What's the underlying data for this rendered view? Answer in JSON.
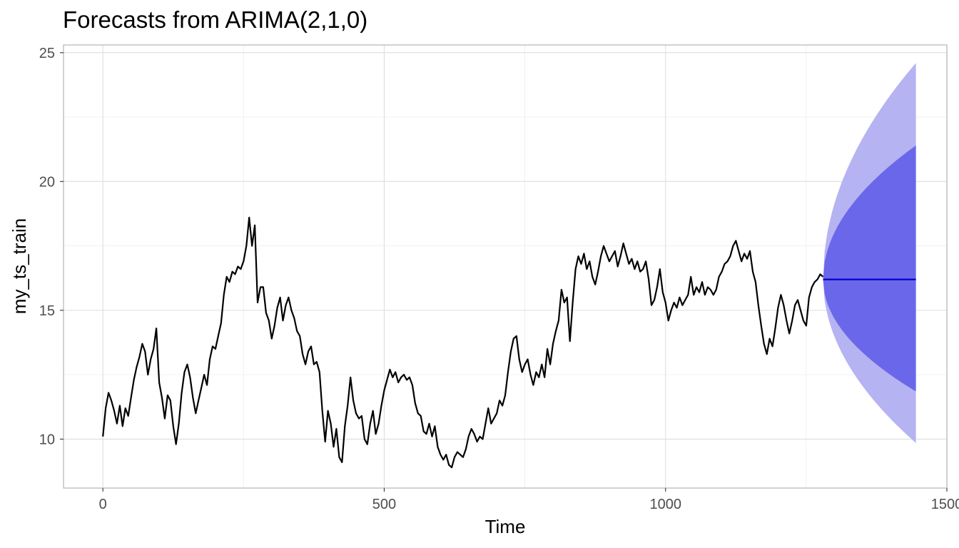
{
  "chart_data": {
    "type": "line",
    "title": "Forecasts from ARIMA(2,1,0)",
    "xlabel": "Time",
    "ylabel": "my_ts_train",
    "xlim": [
      -70,
      1500
    ],
    "ylim": [
      8.1,
      25.3
    ],
    "xticks": [
      0,
      500,
      1000,
      1500
    ],
    "xtick_labels": [
      "0",
      "500",
      "1000",
      "1500"
    ],
    "yticks": [
      10,
      15,
      20,
      25
    ],
    "ytick_labels": [
      "10",
      "15",
      "20",
      "25"
    ],
    "grid": true,
    "legend": "none",
    "series": [
      {
        "role": "observed",
        "color": "#000000",
        "points": [
          [
            0,
            10.1
          ],
          [
            5,
            11.2
          ],
          [
            10,
            11.8
          ],
          [
            15,
            11.5
          ],
          [
            20,
            11.1
          ],
          [
            25,
            10.6
          ],
          [
            30,
            11.3
          ],
          [
            35,
            10.5
          ],
          [
            40,
            11.2
          ],
          [
            45,
            10.9
          ],
          [
            50,
            11.6
          ],
          [
            55,
            12.3
          ],
          [
            60,
            12.8
          ],
          [
            65,
            13.2
          ],
          [
            70,
            13.7
          ],
          [
            75,
            13.4
          ],
          [
            80,
            12.5
          ],
          [
            85,
            13.1
          ],
          [
            90,
            13.5
          ],
          [
            95,
            14.3
          ],
          [
            100,
            12.2
          ],
          [
            105,
            11.6
          ],
          [
            110,
            10.8
          ],
          [
            115,
            11.7
          ],
          [
            120,
            11.5
          ],
          [
            125,
            10.5
          ],
          [
            130,
            9.8
          ],
          [
            135,
            10.6
          ],
          [
            140,
            11.8
          ],
          [
            145,
            12.6
          ],
          [
            150,
            12.9
          ],
          [
            155,
            12.4
          ],
          [
            160,
            11.6
          ],
          [
            165,
            11.0
          ],
          [
            170,
            11.5
          ],
          [
            175,
            12.0
          ],
          [
            180,
            12.5
          ],
          [
            185,
            12.1
          ],
          [
            190,
            13.1
          ],
          [
            195,
            13.6
          ],
          [
            200,
            13.5
          ],
          [
            205,
            14.0
          ],
          [
            210,
            14.5
          ],
          [
            215,
            15.6
          ],
          [
            220,
            16.3
          ],
          [
            225,
            16.1
          ],
          [
            230,
            16.5
          ],
          [
            235,
            16.4
          ],
          [
            240,
            16.7
          ],
          [
            245,
            16.6
          ],
          [
            250,
            16.9
          ],
          [
            255,
            17.5
          ],
          [
            260,
            18.6
          ],
          [
            265,
            17.5
          ],
          [
            270,
            18.3
          ],
          [
            275,
            15.3
          ],
          [
            280,
            15.9
          ],
          [
            285,
            15.9
          ],
          [
            290,
            14.9
          ],
          [
            295,
            14.6
          ],
          [
            300,
            13.9
          ],
          [
            305,
            14.4
          ],
          [
            310,
            15.1
          ],
          [
            315,
            15.5
          ],
          [
            320,
            14.6
          ],
          [
            325,
            15.2
          ],
          [
            330,
            15.5
          ],
          [
            335,
            15.0
          ],
          [
            340,
            14.7
          ],
          [
            345,
            14.2
          ],
          [
            350,
            14.0
          ],
          [
            355,
            13.3
          ],
          [
            360,
            12.9
          ],
          [
            365,
            13.4
          ],
          [
            370,
            13.6
          ],
          [
            375,
            12.9
          ],
          [
            380,
            13.0
          ],
          [
            385,
            12.6
          ],
          [
            390,
            11.1
          ],
          [
            395,
            9.9
          ],
          [
            400,
            11.1
          ],
          [
            405,
            10.6
          ],
          [
            410,
            9.7
          ],
          [
            415,
            10.4
          ],
          [
            420,
            9.3
          ],
          [
            425,
            9.1
          ],
          [
            430,
            10.5
          ],
          [
            435,
            11.3
          ],
          [
            440,
            12.4
          ],
          [
            445,
            11.5
          ],
          [
            450,
            11.0
          ],
          [
            455,
            10.8
          ],
          [
            460,
            10.9
          ],
          [
            465,
            10.0
          ],
          [
            470,
            9.8
          ],
          [
            475,
            10.6
          ],
          [
            480,
            11.1
          ],
          [
            485,
            10.2
          ],
          [
            490,
            10.6
          ],
          [
            495,
            11.3
          ],
          [
            500,
            11.9
          ],
          [
            505,
            12.3
          ],
          [
            510,
            12.7
          ],
          [
            515,
            12.4
          ],
          [
            520,
            12.6
          ],
          [
            525,
            12.2
          ],
          [
            530,
            12.4
          ],
          [
            535,
            12.5
          ],
          [
            540,
            12.3
          ],
          [
            545,
            12.4
          ],
          [
            550,
            12.1
          ],
          [
            555,
            11.4
          ],
          [
            560,
            11.0
          ],
          [
            565,
            10.9
          ],
          [
            570,
            10.3
          ],
          [
            575,
            10.2
          ],
          [
            580,
            10.6
          ],
          [
            585,
            10.1
          ],
          [
            590,
            10.5
          ],
          [
            595,
            9.7
          ],
          [
            600,
            9.4
          ],
          [
            605,
            9.2
          ],
          [
            610,
            9.4
          ],
          [
            615,
            9.0
          ],
          [
            620,
            8.9
          ],
          [
            625,
            9.3
          ],
          [
            630,
            9.5
          ],
          [
            635,
            9.4
          ],
          [
            640,
            9.3
          ],
          [
            645,
            9.6
          ],
          [
            650,
            10.1
          ],
          [
            655,
            10.4
          ],
          [
            660,
            10.2
          ],
          [
            665,
            9.9
          ],
          [
            670,
            10.1
          ],
          [
            675,
            10.0
          ],
          [
            680,
            10.6
          ],
          [
            685,
            11.2
          ],
          [
            690,
            10.6
          ],
          [
            695,
            10.8
          ],
          [
            700,
            11.0
          ],
          [
            705,
            11.5
          ],
          [
            710,
            11.3
          ],
          [
            715,
            11.7
          ],
          [
            720,
            12.6
          ],
          [
            725,
            13.4
          ],
          [
            730,
            13.9
          ],
          [
            735,
            14.0
          ],
          [
            740,
            13.1
          ],
          [
            745,
            12.6
          ],
          [
            750,
            12.9
          ],
          [
            755,
            13.1
          ],
          [
            760,
            12.5
          ],
          [
            765,
            12.1
          ],
          [
            770,
            12.6
          ],
          [
            775,
            12.4
          ],
          [
            780,
            12.9
          ],
          [
            785,
            12.4
          ],
          [
            790,
            13.5
          ],
          [
            795,
            12.9
          ],
          [
            800,
            13.7
          ],
          [
            805,
            14.2
          ],
          [
            810,
            14.6
          ],
          [
            815,
            15.8
          ],
          [
            820,
            15.3
          ],
          [
            825,
            15.5
          ],
          [
            830,
            13.8
          ],
          [
            835,
            15.3
          ],
          [
            840,
            16.6
          ],
          [
            845,
            17.1
          ],
          [
            850,
            16.8
          ],
          [
            855,
            17.2
          ],
          [
            860,
            16.6
          ],
          [
            865,
            16.9
          ],
          [
            870,
            16.3
          ],
          [
            875,
            16.0
          ],
          [
            880,
            16.5
          ],
          [
            885,
            17.1
          ],
          [
            890,
            17.5
          ],
          [
            895,
            17.2
          ],
          [
            900,
            16.9
          ],
          [
            905,
            17.1
          ],
          [
            910,
            17.3
          ],
          [
            915,
            16.7
          ],
          [
            920,
            17.1
          ],
          [
            925,
            17.6
          ],
          [
            930,
            17.2
          ],
          [
            935,
            16.8
          ],
          [
            940,
            17.0
          ],
          [
            945,
            16.6
          ],
          [
            950,
            16.9
          ],
          [
            955,
            16.5
          ],
          [
            960,
            16.6
          ],
          [
            965,
            16.9
          ],
          [
            970,
            16.2
          ],
          [
            975,
            15.2
          ],
          [
            980,
            15.4
          ],
          [
            985,
            15.9
          ],
          [
            990,
            16.6
          ],
          [
            995,
            15.7
          ],
          [
            1000,
            15.3
          ],
          [
            1005,
            14.6
          ],
          [
            1010,
            15.0
          ],
          [
            1015,
            15.3
          ],
          [
            1020,
            15.1
          ],
          [
            1025,
            15.5
          ],
          [
            1030,
            15.2
          ],
          [
            1035,
            15.4
          ],
          [
            1040,
            15.6
          ],
          [
            1045,
            16.3
          ],
          [
            1050,
            15.6
          ],
          [
            1055,
            15.9
          ],
          [
            1060,
            15.7
          ],
          [
            1065,
            16.1
          ],
          [
            1070,
            15.6
          ],
          [
            1075,
            15.9
          ],
          [
            1080,
            15.8
          ],
          [
            1085,
            15.6
          ],
          [
            1090,
            15.8
          ],
          [
            1095,
            16.3
          ],
          [
            1100,
            16.5
          ],
          [
            1105,
            16.8
          ],
          [
            1110,
            16.9
          ],
          [
            1115,
            17.1
          ],
          [
            1120,
            17.5
          ],
          [
            1125,
            17.7
          ],
          [
            1130,
            17.3
          ],
          [
            1135,
            16.9
          ],
          [
            1140,
            17.2
          ],
          [
            1145,
            17.0
          ],
          [
            1150,
            17.3
          ],
          [
            1155,
            16.5
          ],
          [
            1160,
            16.1
          ],
          [
            1165,
            15.2
          ],
          [
            1170,
            14.4
          ],
          [
            1175,
            13.7
          ],
          [
            1180,
            13.3
          ],
          [
            1185,
            13.9
          ],
          [
            1190,
            13.6
          ],
          [
            1195,
            14.3
          ],
          [
            1200,
            15.1
          ],
          [
            1205,
            15.6
          ],
          [
            1210,
            15.2
          ],
          [
            1215,
            14.6
          ],
          [
            1220,
            14.1
          ],
          [
            1225,
            14.6
          ],
          [
            1230,
            15.2
          ],
          [
            1235,
            15.4
          ],
          [
            1240,
            15.0
          ],
          [
            1245,
            14.6
          ],
          [
            1250,
            14.4
          ],
          [
            1255,
            15.5
          ],
          [
            1260,
            15.9
          ],
          [
            1265,
            16.1
          ],
          [
            1270,
            16.2
          ],
          [
            1275,
            16.4
          ],
          [
            1280,
            16.3
          ]
        ]
      },
      {
        "role": "point-forecast",
        "color": "#0000cc",
        "points": [
          [
            1280,
            16.2
          ],
          [
            1445,
            16.2
          ]
        ]
      }
    ],
    "forecast_bands": [
      {
        "level": "80%",
        "color": "#6b67ea",
        "start": 1280,
        "end": 1445,
        "mean": 16.2,
        "upper_end": 21.4,
        "lower_end": 11.85
      },
      {
        "level": "95%",
        "color": "#b5b3f2",
        "start": 1280,
        "end": 1445,
        "mean": 16.2,
        "upper_end": 24.6,
        "lower_end": 9.85
      }
    ]
  }
}
